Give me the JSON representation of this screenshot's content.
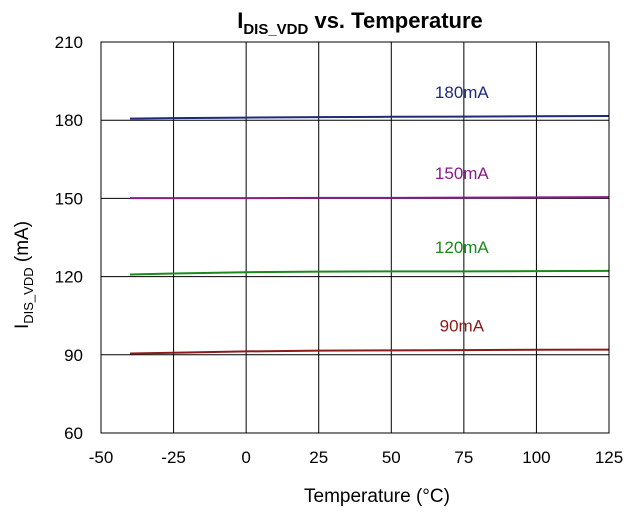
{
  "chart_data": {
    "type": "line",
    "title": {
      "prefix": "I",
      "subscript": "DIS_VDD",
      "suffix": " vs. Temperature"
    },
    "xlabel": "Temperature (°C)",
    "ylabel": {
      "prefix": "I",
      "subscript": "DIS_VDD",
      "suffix": " (mA)"
    },
    "xlim": [
      -50,
      125
    ],
    "ylim": [
      60,
      210
    ],
    "xticks": [
      -50,
      -25,
      0,
      25,
      50,
      75,
      100,
      125
    ],
    "yticks": [
      60,
      90,
      120,
      150,
      180,
      210
    ],
    "grid": true,
    "series": [
      {
        "name": "180mA",
        "color": "#1f2a7a",
        "x": [
          -40,
          -25,
          0,
          25,
          50,
          75,
          100,
          125
        ],
        "y": [
          180.6,
          180.8,
          181.0,
          181.2,
          181.3,
          181.4,
          181.5,
          181.6
        ]
      },
      {
        "name": "150mA",
        "color": "#8b1a8b",
        "x": [
          -40,
          -25,
          0,
          25,
          50,
          75,
          100,
          125
        ],
        "y": [
          150.1,
          150.1,
          150.1,
          150.2,
          150.2,
          150.3,
          150.4,
          150.5
        ]
      },
      {
        "name": "120mA",
        "color": "#1a8a1a",
        "x": [
          -40,
          -25,
          0,
          25,
          50,
          75,
          100,
          125
        ],
        "y": [
          120.8,
          121.2,
          121.7,
          121.9,
          122.0,
          122.0,
          122.1,
          122.2
        ]
      },
      {
        "name": "90mA",
        "color": "#8b1a1a",
        "x": [
          -40,
          -25,
          0,
          25,
          50,
          75,
          100,
          125
        ],
        "y": [
          90.5,
          90.8,
          91.3,
          91.6,
          91.7,
          91.8,
          91.9,
          92.0
        ]
      }
    ]
  }
}
